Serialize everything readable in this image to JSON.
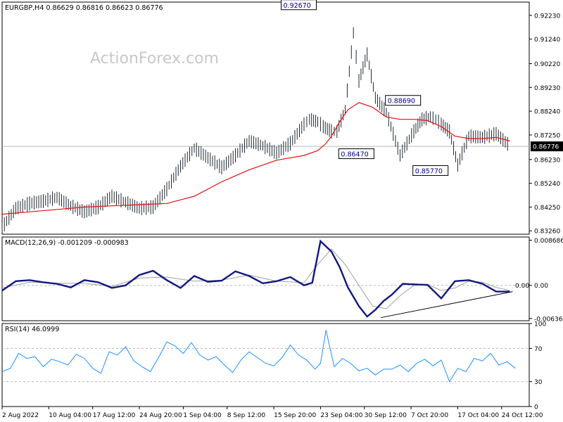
{
  "chart_data": [
    {
      "type": "candlestick",
      "title": "EURGBP,H4  0.86629 0.86816 0.86623 0.86776",
      "watermark": "ActionForex.com",
      "ylim": [
        0.8312,
        0.9278
      ],
      "yticks": [
        "0.92230",
        "0.91240",
        "0.90220",
        "0.89230",
        "0.88240",
        "0.87250",
        "0.86230",
        "0.85240",
        "0.84250",
        "0.83260"
      ],
      "ytick_values": [
        0.9223,
        0.9124,
        0.9022,
        0.8923,
        0.8824,
        0.8725,
        0.8623,
        0.8524,
        0.8425,
        0.8326
      ],
      "last_price": "0.86776",
      "last_price_value": 0.86776,
      "annotations": [
        {
          "label": "0.92670",
          "x": 115,
          "y": 0.9267
        },
        {
          "label": "0.88690",
          "x": 153,
          "y": 0.8869
        },
        {
          "label": "0.86470",
          "x": 136,
          "y": 0.8647
        },
        {
          "label": "0.85770",
          "x": 163,
          "y": 0.8577
        }
      ],
      "series": [
        {
          "name": "price",
          "x": [
            0,
            5,
            10,
            15,
            20,
            25,
            30,
            35,
            40,
            45,
            50,
            55,
            60,
            65,
            70,
            75,
            80,
            85,
            90,
            95,
            100,
            105,
            110,
            112,
            115,
            117,
            120,
            122,
            125,
            128,
            130,
            133,
            136,
            140,
            145,
            150,
            153,
            156,
            158,
            160,
            163,
            166,
            170,
            175,
            180,
            185
          ],
          "y": [
            0.834,
            0.842,
            0.844,
            0.845,
            0.8465,
            0.843,
            0.8405,
            0.8425,
            0.847,
            0.8445,
            0.842,
            0.8425,
            0.85,
            0.8595,
            0.867,
            0.863,
            0.859,
            0.864,
            0.87,
            0.868,
            0.865,
            0.869,
            0.877,
            0.879,
            0.878,
            0.876,
            0.874,
            0.874,
            0.883,
            0.915,
            0.895,
            0.906,
            0.888,
            0.882,
            0.864,
            0.874,
            0.879,
            0.88,
            0.879,
            0.877,
            0.874,
            0.86,
            0.872,
            0.8715,
            0.873,
            0.868
          ]
        },
        {
          "name": "ma",
          "x": [
            0,
            10,
            20,
            30,
            40,
            50,
            60,
            70,
            80,
            90,
            100,
            110,
            115,
            118,
            120,
            123,
            126,
            130,
            135,
            140,
            145,
            150,
            155,
            160,
            165,
            170,
            175,
            180,
            185
          ],
          "y": [
            0.8395,
            0.8405,
            0.8415,
            0.8425,
            0.843,
            0.8435,
            0.844,
            0.847,
            0.853,
            0.858,
            0.862,
            0.864,
            0.866,
            0.869,
            0.872,
            0.878,
            0.883,
            0.886,
            0.884,
            0.88,
            0.879,
            0.879,
            0.8785,
            0.876,
            0.872,
            0.871,
            0.871,
            0.8715,
            0.87
          ]
        }
      ],
      "xlim": [
        0,
        190
      ]
    },
    {
      "type": "line",
      "title": "MACD(12,26,9) -0.001209 -0.000983",
      "ylim": [
        -0.0068,
        0.0093
      ],
      "yticks": [
        "0.008686",
        "0.00",
        "-0.006366"
      ],
      "ytick_values": [
        0.008686,
        0.0,
        -0.006366
      ],
      "value_label": "0.00",
      "series": [
        {
          "name": "macd",
          "x": [
            0,
            5,
            10,
            15,
            20,
            25,
            30,
            35,
            40,
            45,
            50,
            55,
            60,
            65,
            70,
            75,
            80,
            85,
            90,
            95,
            100,
            105,
            110,
            113,
            116,
            120,
            123,
            126,
            130,
            133,
            136,
            139,
            142,
            146,
            150,
            155,
            160,
            165,
            170,
            175,
            180,
            185
          ],
          "y": [
            -0.001,
            0.0008,
            0.001,
            0.0006,
            0.0003,
            -0.0004,
            0.001,
            0.0006,
            -0.0005,
            0.0,
            0.002,
            0.0028,
            0.001,
            -0.0005,
            0.0018,
            0.0007,
            0.0009,
            0.0027,
            0.0018,
            0.0004,
            0.0008,
            0.0016,
            0.0,
            0.0005,
            0.0085,
            0.0065,
            0.0035,
            -0.0004,
            -0.004,
            -0.006,
            -0.0047,
            -0.003,
            -0.0018,
            0.0003,
            0.0002,
            0.0001,
            -0.0025,
            0.0008,
            0.001,
            0.0003,
            -0.0012,
            -0.0012
          ]
        },
        {
          "name": "signal",
          "x": [
            0,
            10,
            20,
            30,
            40,
            50,
            60,
            70,
            80,
            90,
            100,
            110,
            115,
            120,
            125,
            130,
            135,
            140,
            145,
            150,
            155,
            160,
            165,
            170,
            175,
            180,
            185
          ],
          "y": [
            -0.0005,
            0.0006,
            0.0004,
            0.0004,
            -0.0002,
            0.0014,
            0.0016,
            0.0008,
            0.001,
            0.002,
            0.0008,
            0.0005,
            0.004,
            0.007,
            0.004,
            0.0,
            -0.004,
            -0.0045,
            -0.002,
            0.0,
            0.0002,
            -0.001,
            -0.0005,
            0.0008,
            0.0006,
            -0.0004,
            -0.001
          ]
        }
      ],
      "trendline": {
        "x": [
          138,
          186
        ],
        "y": [
          -0.0062,
          -0.0012
        ]
      },
      "xlim": [
        0,
        190
      ]
    },
    {
      "type": "line",
      "title": "RSI(14) 46.0999",
      "ylim": [
        0,
        100
      ],
      "yticks": [
        "100",
        "70",
        "30",
        "0"
      ],
      "ytick_values": [
        100,
        70,
        30,
        0
      ],
      "series": [
        {
          "name": "rsi",
          "x": [
            0,
            3,
            6,
            9,
            12,
            15,
            18,
            21,
            24,
            27,
            30,
            33,
            36,
            39,
            42,
            45,
            48,
            51,
            54,
            57,
            60,
            63,
            66,
            69,
            72,
            75,
            78,
            81,
            84,
            87,
            90,
            93,
            96,
            99,
            102,
            105,
            108,
            111,
            114,
            116,
            118,
            121,
            124,
            127,
            130,
            133,
            136,
            139,
            142,
            145,
            148,
            151,
            154,
            157,
            160,
            163,
            166,
            169,
            172,
            175,
            178,
            181,
            184,
            187
          ],
          "y": [
            42,
            46,
            64,
            58,
            60,
            48,
            57,
            54,
            50,
            63,
            58,
            46,
            40,
            66,
            62,
            72,
            55,
            48,
            42,
            59,
            78,
            73,
            64,
            77,
            62,
            56,
            60,
            50,
            41,
            56,
            66,
            59,
            52,
            49,
            59,
            74,
            62,
            56,
            45,
            52,
            92,
            48,
            58,
            52,
            43,
            46,
            38,
            45,
            45,
            50,
            42,
            52,
            57,
            49,
            56,
            30,
            46,
            42,
            58,
            55,
            64,
            50,
            54,
            46
          ]
        }
      ],
      "xlim": [
        0,
        190
      ]
    }
  ],
  "xaxis": {
    "labels": [
      "2 Aug 2022",
      "10 Aug 04:00",
      "17 Aug 12:00",
      "24 Aug 20:00",
      "1 Sep 04:00",
      "8 Sep 12:00",
      "15 Sep 20:00",
      "23 Sep 04:00",
      "30 Sep 12:00",
      "7 Oct 20:00",
      "17 Oct 04:00",
      "24 Oct 12:00"
    ],
    "label_x": [
      0,
      17,
      33,
      50,
      66,
      82,
      99,
      116,
      132,
      149,
      166,
      182
    ]
  },
  "colors": {
    "price": "#1f2a33",
    "ma": "#e01010",
    "macd": "#101880",
    "signal": "#a0a0a0",
    "trendline": "#000000",
    "rsi": "#1e90ff",
    "grid": "#b8b8b8",
    "axis": "#000000",
    "label_box_text": "#000080",
    "watermark": "#c8c8c8",
    "last_price_bg": "#000000",
    "last_price_text": "#ffffff"
  }
}
